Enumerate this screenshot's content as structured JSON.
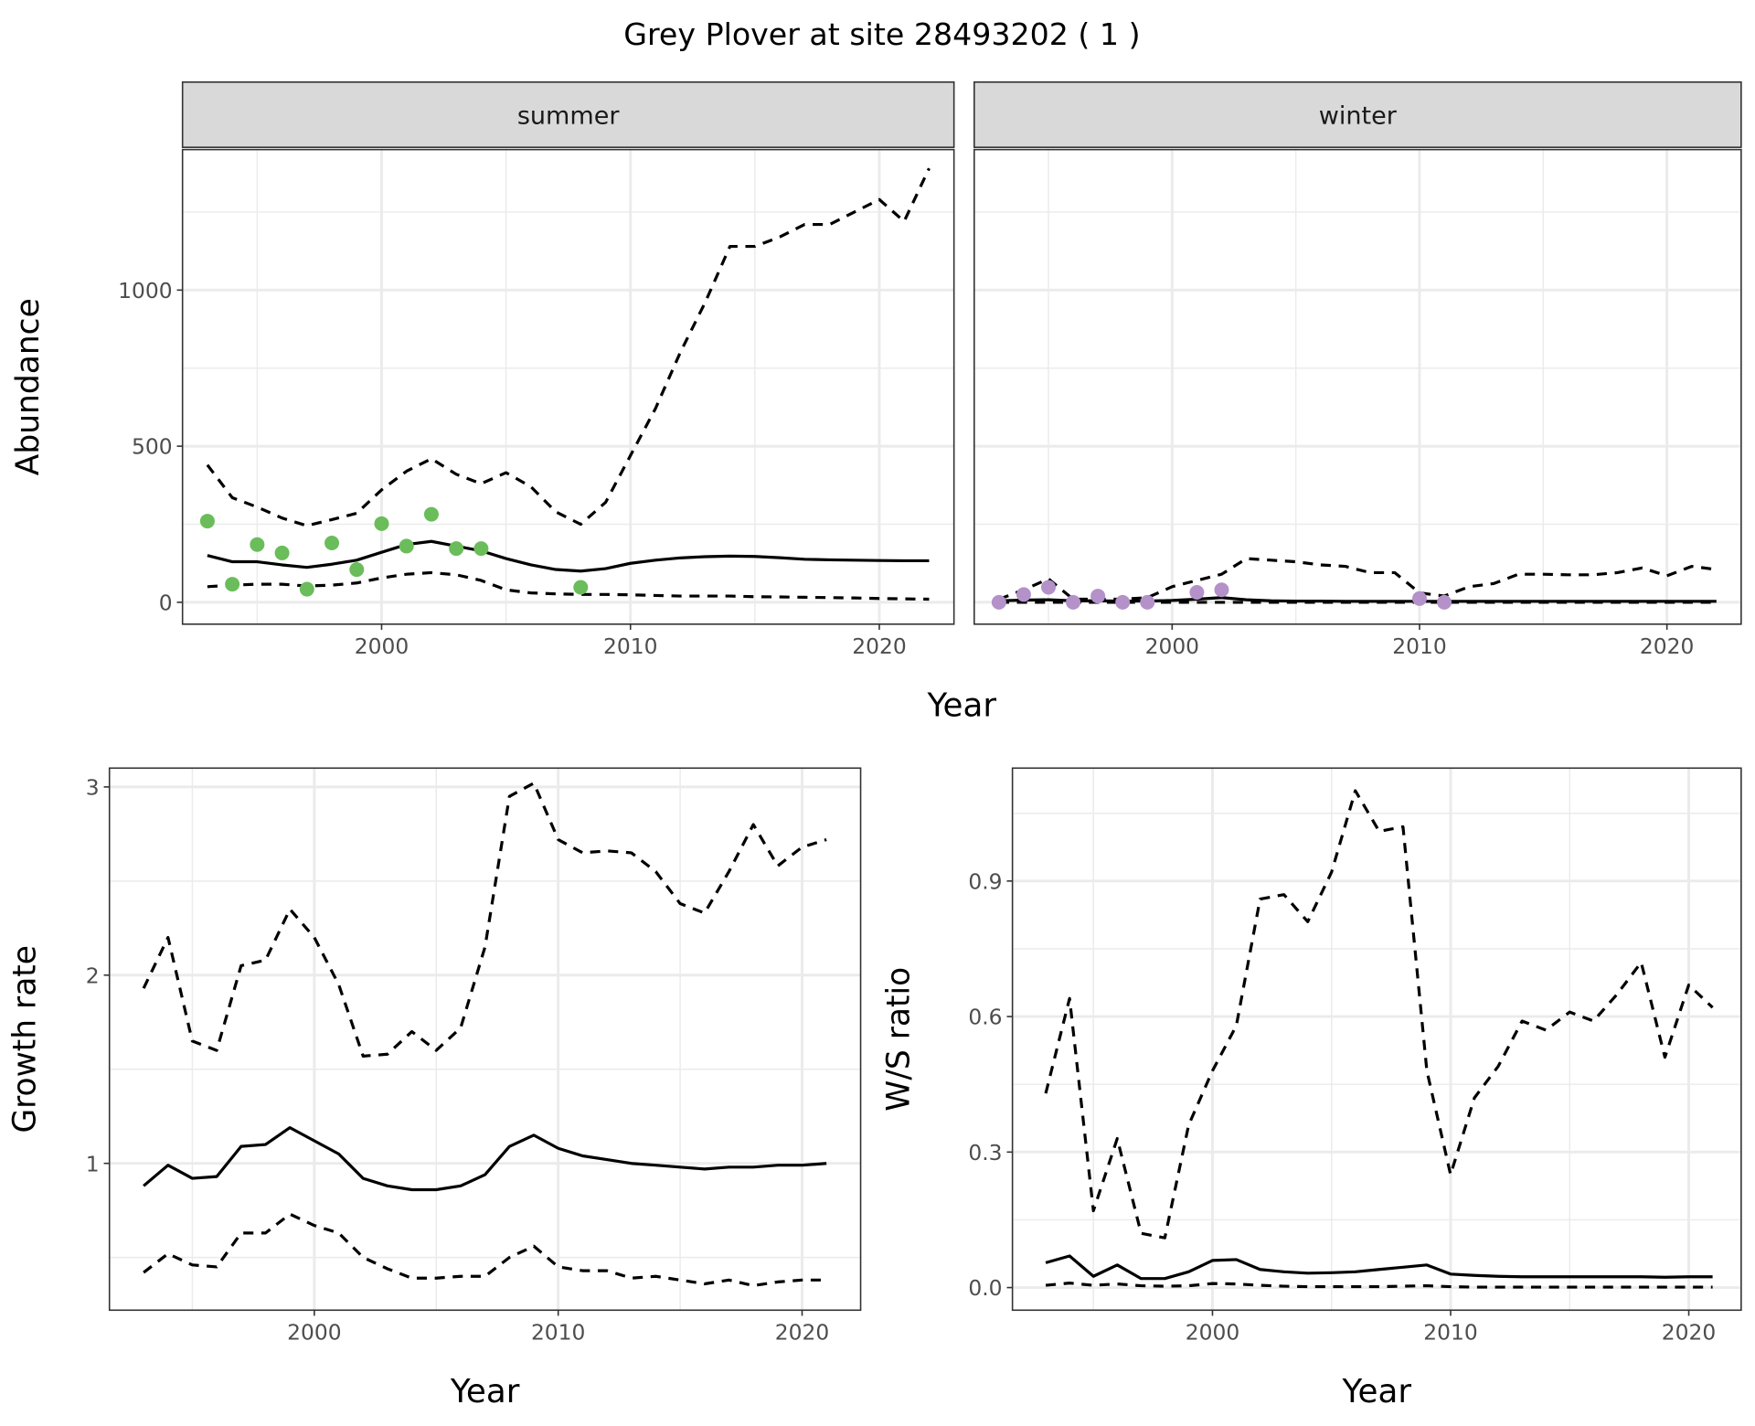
{
  "title": "Grey Plover at site 28493202 ( 1 )",
  "colors": {
    "summer_points": "#6abd5a",
    "winter_points": "#b491c8",
    "lines": "#000000",
    "strip": "#d9d9d9",
    "grid": "#ebebeb"
  },
  "chart_data": [
    {
      "type": "line",
      "facet": "summer",
      "ylabel": "Abundance",
      "xlabel": "Year",
      "x_ticks": [
        "2000",
        "2010",
        "2020"
      ],
      "y_ticks": [
        "0",
        "500",
        "1000"
      ],
      "xlim": [
        1992,
        2023
      ],
      "ylim": [
        -70,
        1450
      ],
      "grid": true,
      "x": [
        1993,
        1994,
        1995,
        1996,
        1997,
        1998,
        1999,
        2000,
        2001,
        2002,
        2003,
        2004,
        2005,
        2006,
        2007,
        2008,
        2009,
        2010,
        2011,
        2012,
        2013,
        2014,
        2015,
        2016,
        2017,
        2018,
        2019,
        2020,
        2021,
        2022
      ],
      "series": [
        {
          "style": "dashed",
          "values": [
            440,
            335,
            305,
            270,
            245,
            265,
            285,
            360,
            420,
            460,
            410,
            380,
            415,
            370,
            290,
            250,
            320,
            470,
            620,
            800,
            960,
            1140,
            1140,
            1170,
            1210,
            1210,
            1250,
            1290,
            1220,
            1390
          ]
        },
        {
          "style": "solid",
          "values": [
            150,
            130,
            130,
            120,
            112,
            122,
            135,
            160,
            185,
            195,
            180,
            165,
            140,
            120,
            105,
            100,
            108,
            125,
            135,
            142,
            146,
            148,
            147,
            143,
            138,
            136,
            135,
            134,
            133,
            133
          ]
        },
        {
          "style": "dashed",
          "values": [
            50,
            55,
            58,
            58,
            52,
            55,
            62,
            78,
            90,
            95,
            88,
            70,
            40,
            30,
            27,
            25,
            25,
            24,
            22,
            20,
            20,
            20,
            18,
            17,
            16,
            15,
            14,
            12,
            11,
            10
          ]
        }
      ],
      "points": {
        "x": [
          1993,
          1994,
          1995,
          1996,
          1997,
          1998,
          1999,
          2000,
          2001,
          2002,
          2003,
          2004,
          2008
        ],
        "y": [
          260,
          58,
          185,
          158,
          42,
          190,
          105,
          252,
          180,
          282,
          172,
          172,
          48
        ]
      }
    },
    {
      "type": "line",
      "facet": "winter",
      "xlabel": "Year",
      "x_ticks": [
        "2000",
        "2010",
        "2020"
      ],
      "xlim": [
        1992,
        2023
      ],
      "ylim": [
        -70,
        1450
      ],
      "grid": true,
      "x": [
        1993,
        1994,
        1995,
        1996,
        1997,
        1998,
        1999,
        2000,
        2001,
        2002,
        2003,
        2004,
        2005,
        2006,
        2007,
        2008,
        2009,
        2010,
        2011,
        2012,
        2013,
        2014,
        2015,
        2016,
        2017,
        2018,
        2019,
        2020,
        2021,
        2022
      ],
      "series": [
        {
          "style": "dashed",
          "values": [
            10,
            40,
            75,
            10,
            10,
            10,
            15,
            50,
            70,
            90,
            140,
            135,
            130,
            120,
            115,
            95,
            95,
            30,
            20,
            50,
            60,
            90,
            90,
            88,
            88,
            95,
            110,
            85,
            115,
            105
          ]
        },
        {
          "style": "solid",
          "values": [
            5,
            7,
            8,
            5,
            5,
            4,
            4,
            6,
            10,
            15,
            8,
            5,
            4,
            4,
            3,
            3,
            3,
            3,
            3,
            3,
            3,
            3,
            3,
            3,
            3,
            3,
            3,
            3,
            3,
            3
          ]
        },
        {
          "style": "dashed",
          "values": [
            0,
            0,
            0,
            0,
            0,
            0,
            0,
            0,
            0,
            0,
            0,
            0,
            0,
            0,
            0,
            0,
            0,
            0,
            0,
            0,
            0,
            0,
            0,
            0,
            0,
            0,
            0,
            0,
            0,
            0
          ]
        }
      ],
      "points": {
        "x": [
          1993,
          1994,
          1995,
          1996,
          1997,
          1998,
          1999,
          2001,
          2002,
          2010,
          2011
        ],
        "y": [
          0,
          25,
          48,
          0,
          20,
          0,
          0,
          32,
          40,
          12,
          0
        ]
      }
    },
    {
      "type": "line",
      "ylabel": "Growth rate",
      "xlabel": "Year",
      "x_ticks": [
        "2000",
        "2010",
        "2020"
      ],
      "y_ticks": [
        "1",
        "2",
        "3"
      ],
      "xlim": [
        1991.6,
        2022.4
      ],
      "ylim": [
        0.22,
        3.1
      ],
      "grid": true,
      "x": [
        1993,
        1994,
        1995,
        1996,
        1997,
        1998,
        1999,
        2000,
        2001,
        2002,
        2003,
        2004,
        2005,
        2006,
        2007,
        2008,
        2009,
        2010,
        2011,
        2012,
        2013,
        2014,
        2015,
        2016,
        2017,
        2018,
        2019,
        2020,
        2021
      ],
      "series": [
        {
          "style": "dashed",
          "values": [
            1.93,
            2.2,
            1.65,
            1.6,
            2.05,
            2.08,
            2.35,
            2.2,
            1.95,
            1.57,
            1.58,
            1.7,
            1.6,
            1.72,
            2.15,
            2.95,
            3.02,
            2.72,
            2.65,
            2.66,
            2.65,
            2.55,
            2.38,
            2.33,
            2.55,
            2.8,
            2.58,
            2.68,
            2.72
          ]
        },
        {
          "style": "solid",
          "values": [
            0.88,
            0.99,
            0.92,
            0.93,
            1.09,
            1.1,
            1.19,
            1.12,
            1.05,
            0.92,
            0.88,
            0.86,
            0.86,
            0.88,
            0.94,
            1.09,
            1.15,
            1.08,
            1.04,
            1.02,
            1.0,
            0.99,
            0.98,
            0.97,
            0.98,
            0.98,
            0.99,
            0.99,
            1.0
          ]
        },
        {
          "style": "dashed",
          "values": [
            0.42,
            0.52,
            0.46,
            0.45,
            0.63,
            0.63,
            0.73,
            0.67,
            0.63,
            0.5,
            0.44,
            0.39,
            0.39,
            0.4,
            0.4,
            0.5,
            0.56,
            0.45,
            0.43,
            0.43,
            0.39,
            0.4,
            0.38,
            0.36,
            0.38,
            0.35,
            0.37,
            0.38,
            0.38
          ]
        }
      ]
    },
    {
      "type": "line",
      "ylabel": "W/S ratio",
      "xlabel": "Year",
      "x_ticks": [
        "2000",
        "2010",
        "2020"
      ],
      "y_ticks": [
        "0.0",
        "0.3",
        "0.6",
        "0.9"
      ],
      "xlim": [
        1991.6,
        2022.2
      ],
      "ylim": [
        -0.05,
        1.15
      ],
      "grid": true,
      "x": [
        1993,
        1994,
        1995,
        1996,
        1997,
        1998,
        1999,
        2000,
        2001,
        2002,
        2003,
        2004,
        2005,
        2006,
        2007,
        2008,
        2009,
        2010,
        2011,
        2012,
        2013,
        2014,
        2015,
        2016,
        2017,
        2018,
        2019,
        2020,
        2021
      ],
      "series": [
        {
          "style": "dashed",
          "values": [
            0.43,
            0.64,
            0.17,
            0.33,
            0.12,
            0.11,
            0.36,
            0.48,
            0.58,
            0.86,
            0.87,
            0.81,
            0.92,
            1.1,
            1.01,
            1.02,
            0.48,
            0.25,
            0.42,
            0.49,
            0.59,
            0.57,
            0.61,
            0.59,
            0.65,
            0.72,
            0.51,
            0.67,
            0.62
          ]
        },
        {
          "style": "solid",
          "values": [
            0.055,
            0.07,
            0.025,
            0.05,
            0.02,
            0.02,
            0.035,
            0.06,
            0.062,
            0.04,
            0.035,
            0.032,
            0.033,
            0.035,
            0.04,
            0.045,
            0.05,
            0.03,
            0.027,
            0.025,
            0.024,
            0.024,
            0.024,
            0.024,
            0.024,
            0.024,
            0.023,
            0.024,
            0.024
          ]
        },
        {
          "style": "dashed",
          "values": [
            0.005,
            0.01,
            0.005,
            0.008,
            0.004,
            0.003,
            0.004,
            0.009,
            0.008,
            0.005,
            0.003,
            0.002,
            0.002,
            0.002,
            0.002,
            0.003,
            0.004,
            0.002,
            0.001,
            0.001,
            0.001,
            0.001,
            0.001,
            0.001,
            0.001,
            0.001,
            0.001,
            0.001,
            0.001
          ]
        }
      ]
    }
  ]
}
